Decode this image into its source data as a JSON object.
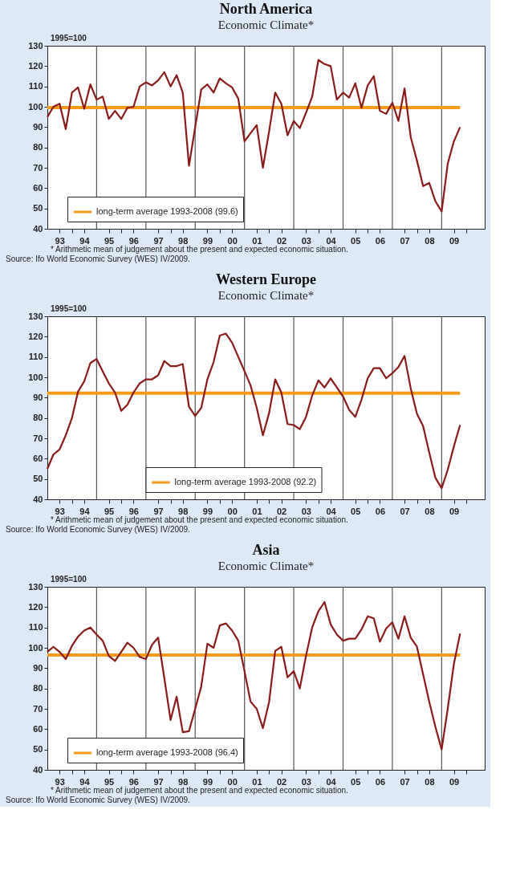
{
  "chart_data": [
    {
      "type": "line",
      "title": "North America",
      "subtitle": "Economic Climate*",
      "annotations": [
        "1995=100",
        "* Arithmetic mean of judgement about the present and expected economic situation.",
        "Source: Ifo World Economic Survey (WES) IV/2009."
      ],
      "x": [
        "1993-01",
        "1993-04",
        "1993-07",
        "1993-10",
        "1994-01",
        "1994-04",
        "1994-07",
        "1994-10",
        "1995-01",
        "1995-04",
        "1995-07",
        "1995-10",
        "1996-01",
        "1996-04",
        "1996-07",
        "1996-10",
        "1997-01",
        "1997-04",
        "1997-07",
        "1997-10",
        "1998-01",
        "1998-04",
        "1998-07",
        "1998-10",
        "1999-01",
        "1999-04",
        "1999-07",
        "1999-10",
        "2000-01",
        "2000-04",
        "2000-07",
        "2000-10",
        "2001-01",
        "2001-04",
        "2001-07",
        "2001-10",
        "2002-01",
        "2002-04",
        "2002-07",
        "2002-10",
        "2003-01",
        "2003-04",
        "2003-07",
        "2003-10",
        "2004-01",
        "2004-04",
        "2004-07",
        "2004-10",
        "2005-01",
        "2005-04",
        "2005-07",
        "2005-10",
        "2006-01",
        "2006-04",
        "2006-07",
        "2006-10",
        "2007-01",
        "2007-04",
        "2007-07",
        "2007-10",
        "2008-01",
        "2008-04",
        "2008-07",
        "2008-10",
        "2009-01",
        "2009-04",
        "2009-07",
        "2009-10"
      ],
      "series": [
        {
          "color": "#8b1a1a",
          "values": [
            95,
            100,
            101.5,
            89,
            107,
            109.5,
            99,
            111,
            103.5,
            105,
            94,
            98,
            94,
            99.5,
            100,
            110,
            112,
            110.5,
            113,
            117,
            110,
            115.5,
            107,
            71,
            90,
            108.5,
            111,
            107,
            114,
            111.5,
            109.5,
            104,
            83,
            87,
            91,
            70,
            88,
            107,
            101.5,
            86,
            93,
            89.5,
            97,
            105,
            123,
            121,
            120,
            103.5,
            107,
            104.5,
            111.5,
            99.5,
            110.5,
            115,
            98,
            96.5,
            102,
            93,
            109,
            85,
            73.5,
            61,
            62.5,
            53.5,
            48.5,
            72,
            83,
            90
          ]
        }
      ],
      "xlim": [
        "1993-01",
        "2010-10"
      ],
      "xticks": [
        {
          "value": "1993-07",
          "label": "93"
        },
        {
          "value": "1994-07",
          "label": "94"
        },
        {
          "value": "1995-07",
          "label": "95"
        },
        {
          "value": "1996-07",
          "label": "96"
        },
        {
          "value": "1997-07",
          "label": "97"
        },
        {
          "value": "1998-07",
          "label": "98"
        },
        {
          "value": "1999-07",
          "label": "99"
        },
        {
          "value": "2000-07",
          "label": "00"
        },
        {
          "value": "2001-07",
          "label": "01"
        },
        {
          "value": "2002-07",
          "label": "02"
        },
        {
          "value": "2003-07",
          "label": "03"
        },
        {
          "value": "2004-07",
          "label": "04"
        },
        {
          "value": "2005-07",
          "label": "05"
        },
        {
          "value": "2006-07",
          "label": "06"
        },
        {
          "value": "2007-07",
          "label": "07"
        },
        {
          "value": "2008-07",
          "label": "08"
        },
        {
          "value": "2009-07",
          "label": "09"
        },
        {
          "value": "1994-01",
          "label": null
        },
        {
          "value": "1996-01",
          "label": null
        },
        {
          "value": "1998-01",
          "label": null
        },
        {
          "value": "2000-01",
          "label": null
        },
        {
          "value": "2002-01",
          "label": null
        },
        {
          "value": "2004-01",
          "label": null
        },
        {
          "value": "2006-01",
          "label": null
        },
        {
          "value": "2008-01",
          "label": null
        },
        {
          "value": "2010-01",
          "label": null
        }
      ],
      "ylim": [
        40,
        130
      ],
      "yticks": [
        40,
        50,
        60,
        70,
        80,
        90,
        100,
        110,
        120,
        130
      ],
      "ref_lines": [
        {
          "axis": "y",
          "value": 99.6,
          "label": "long-term average 1993-2008 (99.6)",
          "color": "#f59a1b"
        },
        {
          "axis": "x",
          "value": "1995-01",
          "color": "#555555"
        },
        {
          "axis": "x",
          "value": "1997-01",
          "color": "#555555"
        },
        {
          "axis": "x",
          "value": "1999-01",
          "color": "#555555"
        },
        {
          "axis": "x",
          "value": "2001-01",
          "color": "#555555"
        },
        {
          "axis": "x",
          "value": "2003-01",
          "color": "#555555"
        },
        {
          "axis": "x",
          "value": "2005-01",
          "color": "#555555"
        },
        {
          "axis": "x",
          "value": "2007-01",
          "color": "#555555"
        },
        {
          "axis": "x",
          "value": "2009-01",
          "color": "#555555"
        }
      ],
      "legend": "bottom left",
      "grid": false,
      "marker": "none",
      "line_style": "solid"
    },
    {
      "type": "line",
      "title": "Western Europe",
      "subtitle": "Economic Climate*",
      "annotations": [
        "1995=100",
        "* Arithmetic mean of judgement about the present and expected economic situation.",
        "Source: Ifo World Economic Survey (WES) IV/2009."
      ],
      "x": [
        "1993-01",
        "1993-04",
        "1993-07",
        "1993-10",
        "1994-01",
        "1994-04",
        "1994-07",
        "1994-10",
        "1995-01",
        "1995-04",
        "1995-07",
        "1995-10",
        "1996-01",
        "1996-04",
        "1996-07",
        "1996-10",
        "1997-01",
        "1997-04",
        "1997-07",
        "1997-10",
        "1998-01",
        "1998-04",
        "1998-07",
        "1998-10",
        "1999-01",
        "1999-04",
        "1999-07",
        "1999-10",
        "2000-01",
        "2000-04",
        "2000-07",
        "2000-10",
        "2001-01",
        "2001-04",
        "2001-07",
        "2001-10",
        "2002-01",
        "2002-04",
        "2002-07",
        "2002-10",
        "2003-01",
        "2003-04",
        "2003-07",
        "2003-10",
        "2004-01",
        "2004-04",
        "2004-07",
        "2004-10",
        "2005-01",
        "2005-04",
        "2005-07",
        "2005-10",
        "2006-01",
        "2006-04",
        "2006-07",
        "2006-10",
        "2007-01",
        "2007-04",
        "2007-07",
        "2007-10",
        "2008-01",
        "2008-04",
        "2008-07",
        "2008-10",
        "2009-01",
        "2009-04",
        "2009-07",
        "2009-10"
      ],
      "series": [
        {
          "color": "#8b1a1a",
          "values": [
            55,
            62,
            64.5,
            71.5,
            80,
            93,
            98,
            107,
            109,
            103,
            97,
            92.5,
            83.5,
            86.5,
            92.5,
            97,
            99,
            99,
            101,
            108,
            105.5,
            105.5,
            106.5,
            85.5,
            81,
            85,
            99,
            107.5,
            120.5,
            121.5,
            117,
            110,
            103,
            96,
            85,
            71.5,
            82.5,
            99,
            92.5,
            77,
            76.5,
            74.5,
            80.5,
            91,
            98.5,
            95,
            99.5,
            95,
            90.5,
            84,
            80.5,
            89,
            99.5,
            104.5,
            104.5,
            99.5,
            102,
            105,
            110.5,
            94.5,
            82,
            76,
            63,
            50.5,
            45.5,
            54.5,
            66,
            76.5
          ]
        }
      ],
      "xlim": [
        "1993-01",
        "2010-10"
      ],
      "xticks": [
        {
          "value": "1993-07",
          "label": "93"
        },
        {
          "value": "1994-07",
          "label": "94"
        },
        {
          "value": "1995-07",
          "label": "95"
        },
        {
          "value": "1996-07",
          "label": "96"
        },
        {
          "value": "1997-07",
          "label": "97"
        },
        {
          "value": "1998-07",
          "label": "98"
        },
        {
          "value": "1999-07",
          "label": "99"
        },
        {
          "value": "2000-07",
          "label": "00"
        },
        {
          "value": "2001-07",
          "label": "01"
        },
        {
          "value": "2002-07",
          "label": "02"
        },
        {
          "value": "2003-07",
          "label": "03"
        },
        {
          "value": "2004-07",
          "label": "04"
        },
        {
          "value": "2005-07",
          "label": "05"
        },
        {
          "value": "2006-07",
          "label": "06"
        },
        {
          "value": "2007-07",
          "label": "07"
        },
        {
          "value": "2008-07",
          "label": "08"
        },
        {
          "value": "2009-07",
          "label": "09"
        },
        {
          "value": "1994-01",
          "label": null
        },
        {
          "value": "1996-01",
          "label": null
        },
        {
          "value": "1998-01",
          "label": null
        },
        {
          "value": "2000-01",
          "label": null
        },
        {
          "value": "2002-01",
          "label": null
        },
        {
          "value": "2004-01",
          "label": null
        },
        {
          "value": "2006-01",
          "label": null
        },
        {
          "value": "2008-01",
          "label": null
        },
        {
          "value": "2010-01",
          "label": null
        }
      ],
      "ylim": [
        40,
        130
      ],
      "yticks": [
        40,
        50,
        60,
        70,
        80,
        90,
        100,
        110,
        120,
        130
      ],
      "ref_lines": [
        {
          "axis": "y",
          "value": 92.2,
          "label": "long-term average 1993-2008 (92.2)",
          "color": "#f59a1b"
        },
        {
          "axis": "x",
          "value": "1995-01",
          "color": "#555555"
        },
        {
          "axis": "x",
          "value": "1997-01",
          "color": "#555555"
        },
        {
          "axis": "x",
          "value": "1999-01",
          "color": "#555555"
        },
        {
          "axis": "x",
          "value": "2001-01",
          "color": "#555555"
        },
        {
          "axis": "x",
          "value": "2003-01",
          "color": "#555555"
        },
        {
          "axis": "x",
          "value": "2005-01",
          "color": "#555555"
        },
        {
          "axis": "x",
          "value": "2007-01",
          "color": "#555555"
        },
        {
          "axis": "x",
          "value": "2009-01",
          "color": "#555555"
        }
      ],
      "legend": "bottom",
      "grid": false,
      "marker": "none",
      "line_style": "solid"
    },
    {
      "type": "line",
      "title": "Asia",
      "subtitle": "Economic Climate*",
      "annotations": [
        "1995=100",
        "* Arithmetic mean of judgement about the present and expected economic situation.",
        "Source: Ifo World Economic Survey (WES) IV/2009."
      ],
      "x": [
        "1993-01",
        "1993-04",
        "1993-07",
        "1993-10",
        "1994-01",
        "1994-04",
        "1994-07",
        "1994-10",
        "1995-01",
        "1995-04",
        "1995-07",
        "1995-10",
        "1996-01",
        "1996-04",
        "1996-07",
        "1996-10",
        "1997-01",
        "1997-04",
        "1997-07",
        "1997-10",
        "1998-01",
        "1998-04",
        "1998-07",
        "1998-10",
        "1999-01",
        "1999-04",
        "1999-07",
        "1999-10",
        "2000-01",
        "2000-04",
        "2000-07",
        "2000-10",
        "2001-01",
        "2001-04",
        "2001-07",
        "2001-10",
        "2002-01",
        "2002-04",
        "2002-07",
        "2002-10",
        "2003-01",
        "2003-04",
        "2003-07",
        "2003-10",
        "2004-01",
        "2004-04",
        "2004-07",
        "2004-10",
        "2005-01",
        "2005-04",
        "2005-07",
        "2005-10",
        "2006-01",
        "2006-04",
        "2006-07",
        "2006-10",
        "2007-01",
        "2007-04",
        "2007-07",
        "2007-10",
        "2008-01",
        "2008-04",
        "2008-07",
        "2008-10",
        "2009-01",
        "2009-04",
        "2009-07",
        "2009-10"
      ],
      "series": [
        {
          "color": "#8b1a1a",
          "values": [
            98,
            100.5,
            98,
            94.5,
            101,
            105.5,
            108.5,
            110,
            106.5,
            103.5,
            96,
            93.5,
            98,
            102.5,
            100,
            95.5,
            94.5,
            101.5,
            105,
            85,
            64.5,
            76,
            58.5,
            59,
            70,
            81,
            102,
            100,
            111,
            112,
            108.5,
            103.5,
            88.5,
            73.5,
            70,
            60.5,
            73.5,
            98.5,
            100.5,
            85.5,
            88.5,
            80,
            96,
            110,
            118,
            122.5,
            111.5,
            106.5,
            103.5,
            104.5,
            104.5,
            109,
            115.5,
            114.5,
            103,
            109.5,
            112.5,
            104.5,
            115.5,
            105,
            100.5,
            87,
            73.5,
            61,
            50,
            70,
            92,
            107
          ]
        }
      ],
      "xlim": [
        "1993-01",
        "2010-10"
      ],
      "xticks": [
        {
          "value": "1993-07",
          "label": "93"
        },
        {
          "value": "1994-07",
          "label": "94"
        },
        {
          "value": "1995-07",
          "label": "95"
        },
        {
          "value": "1996-07",
          "label": "96"
        },
        {
          "value": "1997-07",
          "label": "97"
        },
        {
          "value": "1998-07",
          "label": "98"
        },
        {
          "value": "1999-07",
          "label": "99"
        },
        {
          "value": "2000-07",
          "label": "00"
        },
        {
          "value": "2001-07",
          "label": "01"
        },
        {
          "value": "2002-07",
          "label": "02"
        },
        {
          "value": "2003-07",
          "label": "03"
        },
        {
          "value": "2004-07",
          "label": "04"
        },
        {
          "value": "2005-07",
          "label": "05"
        },
        {
          "value": "2006-07",
          "label": "06"
        },
        {
          "value": "2007-07",
          "label": "07"
        },
        {
          "value": "2008-07",
          "label": "08"
        },
        {
          "value": "2009-07",
          "label": "09"
        },
        {
          "value": "1994-01",
          "label": null
        },
        {
          "value": "1996-01",
          "label": null
        },
        {
          "value": "1998-01",
          "label": null
        },
        {
          "value": "2000-01",
          "label": null
        },
        {
          "value": "2002-01",
          "label": null
        },
        {
          "value": "2004-01",
          "label": null
        },
        {
          "value": "2006-01",
          "label": null
        },
        {
          "value": "2008-01",
          "label": null
        },
        {
          "value": "2010-01",
          "label": null
        }
      ],
      "ylim": [
        40,
        130
      ],
      "yticks": [
        40,
        50,
        60,
        70,
        80,
        90,
        100,
        110,
        120,
        130
      ],
      "ref_lines": [
        {
          "axis": "y",
          "value": 96.4,
          "label": "long-term average 1993-2008 (96.4)",
          "color": "#f59a1b"
        },
        {
          "axis": "x",
          "value": "1995-01",
          "color": "#555555"
        },
        {
          "axis": "x",
          "value": "1997-01",
          "color": "#555555"
        },
        {
          "axis": "x",
          "value": "1999-01",
          "color": "#555555"
        },
        {
          "axis": "x",
          "value": "2001-01",
          "color": "#555555"
        },
        {
          "axis": "x",
          "value": "2003-01",
          "color": "#555555"
        },
        {
          "axis": "x",
          "value": "2005-01",
          "color": "#555555"
        },
        {
          "axis": "x",
          "value": "2007-01",
          "color": "#555555"
        },
        {
          "axis": "x",
          "value": "2009-01",
          "color": "#555555"
        }
      ],
      "legend": "bottom left",
      "grid": false,
      "marker": "none",
      "line_style": "solid"
    }
  ]
}
